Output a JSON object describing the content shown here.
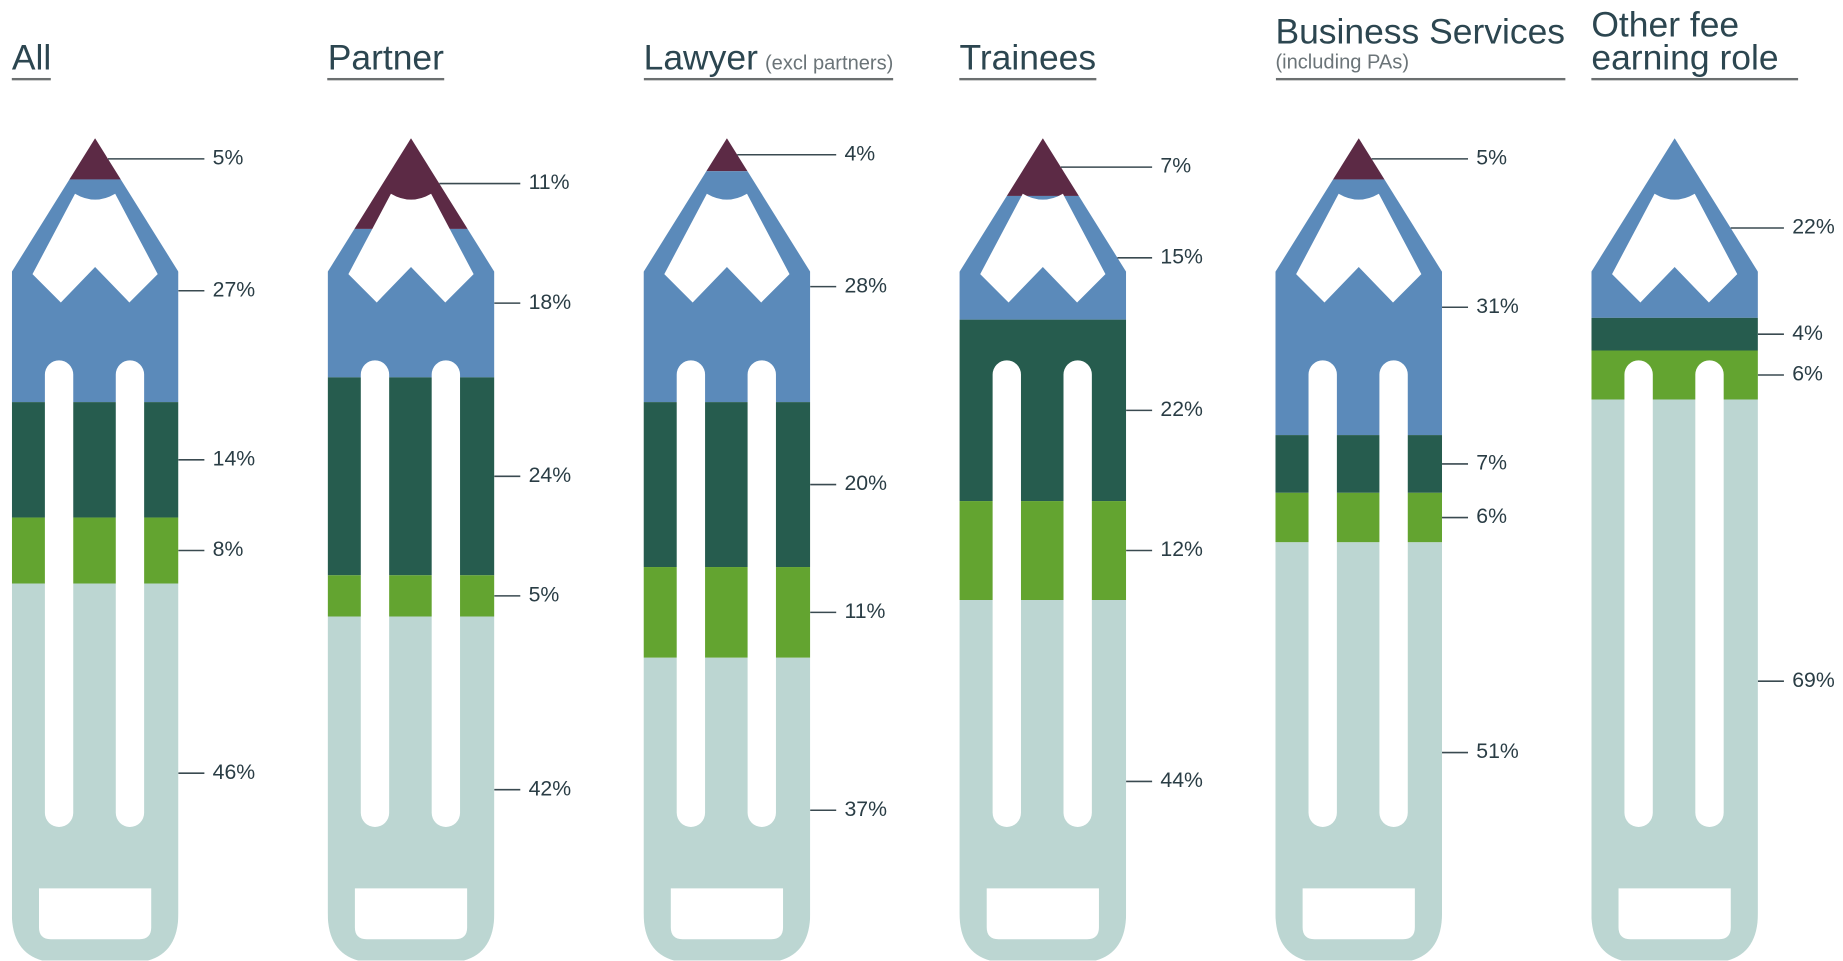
{
  "chart_data": {
    "type": "pencil-stack",
    "categories": [
      "All",
      "Partner",
      "Lawyer",
      "Trainees",
      "Business Services",
      "Other fee earning role"
    ],
    "subtitles": [
      null,
      null,
      "(excl partners)",
      null,
      "(including PAs)",
      null
    ],
    "series": [
      {
        "color": "#5c2a45",
        "values": [
          5,
          11,
          4,
          7,
          5,
          null
        ],
        "value_labels": [
          "5%",
          "11%",
          "4%",
          "7%",
          "5%",
          null
        ]
      },
      {
        "color": "#5b8aba",
        "values": [
          27,
          18,
          28,
          15,
          31,
          22
        ],
        "value_labels": [
          "27%",
          "18%",
          "28%",
          "15%",
          "31%",
          "22%"
        ]
      },
      {
        "color": "#265c4e",
        "values": [
          14,
          24,
          20,
          22,
          7,
          4
        ],
        "value_labels": [
          "14%",
          "24%",
          "20%",
          "22%",
          "7%",
          "4%"
        ]
      },
      {
        "color": "#63a430",
        "values": [
          8,
          5,
          11,
          12,
          6,
          6
        ],
        "value_labels": [
          "8%",
          "5%",
          "11%",
          "12%",
          "6%",
          "6%"
        ]
      },
      {
        "color": "#bcd6d2",
        "values": [
          46,
          42,
          37,
          44,
          51,
          69
        ],
        "value_labels": [
          "46%",
          "42%",
          "37%",
          "44%",
          "51%",
          "69%"
        ]
      }
    ]
  }
}
